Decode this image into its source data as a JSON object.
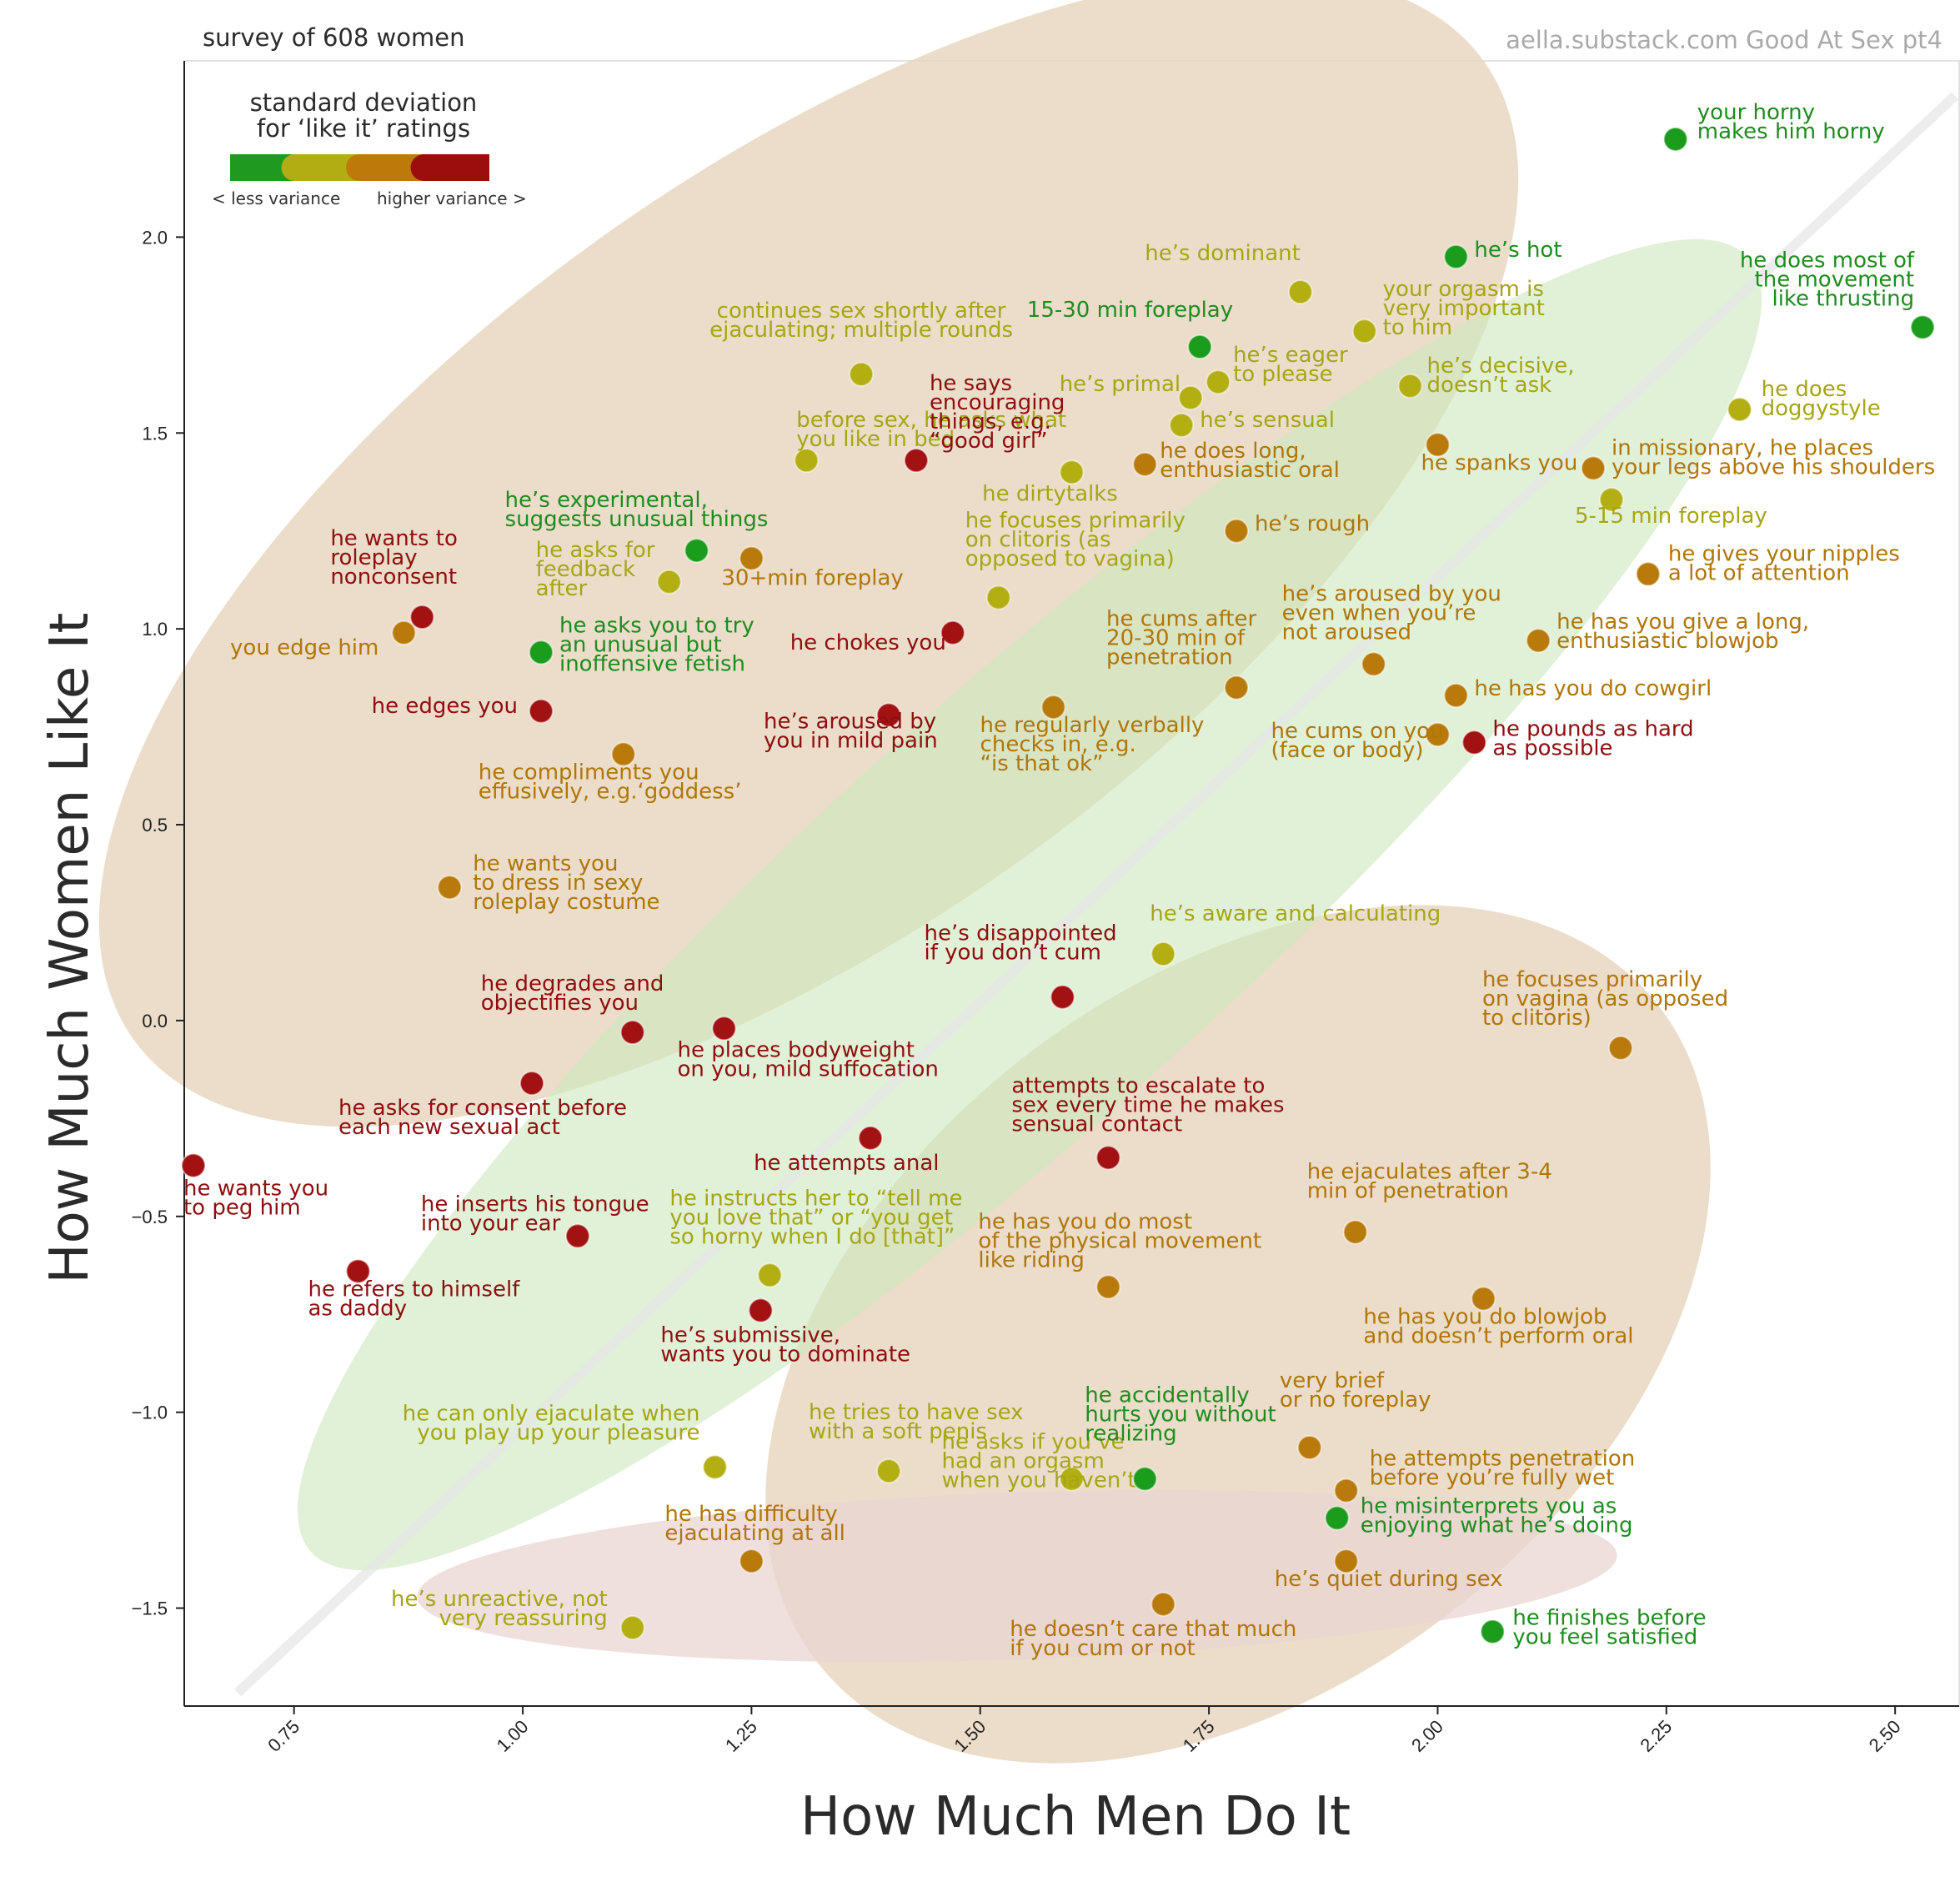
{
  "header": {
    "left": "survey of 608 women",
    "right": "aella.substack.com Good At Sex pt4"
  },
  "legend": {
    "title_line1": "standard deviation",
    "title_line2": "for ‘like it’ ratings",
    "low_label": "< less variance",
    "high_label": "higher variance >",
    "colors": [
      "#1f9a1f",
      "#b1ad12",
      "#bd7a0a",
      "#9c0e0e"
    ]
  },
  "colors": {
    "green": "#1f8c1f",
    "olive": "#a6a614",
    "amber": "#b07608",
    "red": "#8e0f0f",
    "dot_green": "#1c9c1c",
    "dot_olive": "#b3ae12",
    "dot_amber": "#b97a0c",
    "dot_red": "#a31212",
    "ellipse_green": "#d7ecc9",
    "ellipse_tan": "#e6d5be",
    "ellipse_pink": "#ead4d2"
  },
  "chart_data": {
    "type": "scatter",
    "title": "",
    "xlabel": "How Much Men Do It",
    "ylabel": "How Much Women Like It",
    "xlim": [
      0.63,
      2.57
    ],
    "ylim": [
      -1.75,
      2.45
    ],
    "xticks": [
      {
        "v": 0.75,
        "t": "0.75"
      },
      {
        "v": 1.0,
        "t": "1.00"
      },
      {
        "v": 1.25,
        "t": "1.25"
      },
      {
        "v": 1.5,
        "t": "1.50"
      },
      {
        "v": 1.75,
        "t": "1.75"
      },
      {
        "v": 2.0,
        "t": "2.00"
      },
      {
        "v": 2.25,
        "t": "2.25"
      },
      {
        "v": 2.5,
        "t": "2.50"
      }
    ],
    "yticks": [
      {
        "v": -1.5,
        "t": "−1.5"
      },
      {
        "v": -1.0,
        "t": "−1.0"
      },
      {
        "v": -0.5,
        "t": "−0.5"
      },
      {
        "v": 0.0,
        "t": "0.0"
      },
      {
        "v": 0.5,
        "t": "0.5"
      },
      {
        "v": 1.0,
        "t": "1.0"
      },
      {
        "v": 1.5,
        "t": "1.5"
      },
      {
        "v": 2.0,
        "t": "2.0"
      }
    ],
    "points": [
      {
        "x": 2.26,
        "y": 2.25,
        "c": "green",
        "lines": [
          "your horny",
          "makes him horny"
        ]
      },
      {
        "x": 2.02,
        "y": 1.95,
        "c": "green",
        "lines": [
          "he’s hot"
        ]
      },
      {
        "x": 2.53,
        "y": 1.77,
        "c": "green",
        "lines": [
          "he does most of",
          "the movement",
          "like thrusting"
        ]
      },
      {
        "x": 1.85,
        "y": 1.86,
        "c": "olive",
        "lines": [
          "he’s dominant"
        ]
      },
      {
        "x": 1.92,
        "y": 1.76,
        "c": "olive",
        "lines": [
          "your orgasm is",
          "very important",
          "to him"
        ]
      },
      {
        "x": 1.74,
        "y": 1.72,
        "c": "green",
        "lines": [
          "15-30 min foreplay"
        ]
      },
      {
        "x": 1.76,
        "y": 1.63,
        "c": "olive",
        "lines": [
          "he’s eager",
          "to please"
        ]
      },
      {
        "x": 1.73,
        "y": 1.59,
        "c": "olive",
        "lines": [
          "he’s primal"
        ]
      },
      {
        "x": 1.72,
        "y": 1.52,
        "c": "olive",
        "lines": [
          "he’s sensual"
        ]
      },
      {
        "x": 1.97,
        "y": 1.62,
        "c": "olive",
        "lines": [
          "he’s decisive,",
          "doesn’t ask"
        ]
      },
      {
        "x": 1.37,
        "y": 1.65,
        "c": "olive",
        "lines": [
          "continues sex shortly after",
          "ejaculating; multiple rounds"
        ]
      },
      {
        "x": 2.33,
        "y": 1.56,
        "c": "olive",
        "lines": [
          "he does",
          "doggystyle"
        ]
      },
      {
        "x": 1.31,
        "y": 1.43,
        "c": "olive",
        "lines": [
          "before sex, he asks what",
          "you like in bed"
        ]
      },
      {
        "x": 1.43,
        "y": 1.43,
        "c": "red",
        "lines": [
          "he says",
          "encouraging",
          "things, e.g.",
          "“good girl”"
        ]
      },
      {
        "x": 1.68,
        "y": 1.42,
        "c": "amber",
        "lines": [
          "he does long,",
          "enthusiastic oral"
        ]
      },
      {
        "x": 1.6,
        "y": 1.4,
        "c": "olive",
        "lines": [
          "he dirtytalks"
        ]
      },
      {
        "x": 2.0,
        "y": 1.47,
        "c": "amber",
        "lines": [
          "he spanks you"
        ]
      },
      {
        "x": 2.17,
        "y": 1.41,
        "c": "amber",
        "lines": [
          "in missionary, he places",
          "your legs above his shoulders"
        ]
      },
      {
        "x": 2.19,
        "y": 1.33,
        "c": "olive",
        "lines": [
          "5-15 min foreplay"
        ]
      },
      {
        "x": 1.78,
        "y": 1.25,
        "c": "amber",
        "lines": [
          "he’s rough"
        ]
      },
      {
        "x": 1.19,
        "y": 1.2,
        "c": "green",
        "lines": [
          "he’s experimental,",
          "suggests unusual things"
        ]
      },
      {
        "x": 1.25,
        "y": 1.18,
        "c": "amber",
        "lines": [
          "30+min foreplay"
        ]
      },
      {
        "x": 1.16,
        "y": 1.12,
        "c": "olive",
        "lines": [
          "he asks for",
          "feedback",
          "after"
        ]
      },
      {
        "x": 1.52,
        "y": 1.08,
        "c": "olive",
        "lines": [
          "he focuses primarily",
          "on clitoris (as",
          " opposed to vagina)"
        ]
      },
      {
        "x": 2.23,
        "y": 1.14,
        "c": "amber",
        "lines": [
          "he gives your nipples",
          "a lot of attention"
        ]
      },
      {
        "x": 0.89,
        "y": 1.03,
        "c": "red",
        "lines": [
          "he wants to",
          "roleplay",
          "nonconsent"
        ]
      },
      {
        "x": 0.87,
        "y": 0.99,
        "c": "amber",
        "lines": [
          "you edge him"
        ]
      },
      {
        "x": 1.02,
        "y": 0.94,
        "c": "green",
        "lines": [
          "he asks you to try",
          "an unusual but",
          "inoffensive fetish"
        ]
      },
      {
        "x": 1.47,
        "y": 0.99,
        "c": "red",
        "lines": [
          "he chokes you"
        ]
      },
      {
        "x": 2.11,
        "y": 0.97,
        "c": "amber",
        "lines": [
          "he has you give a long,",
          "enthusiastic blowjob"
        ]
      },
      {
        "x": 1.93,
        "y": 0.91,
        "c": "amber",
        "lines": [
          "he’s aroused by you",
          "even when you’re",
          "not aroused"
        ]
      },
      {
        "x": 1.78,
        "y": 0.85,
        "c": "amber",
        "lines": [
          "he cums after",
          "20-30 min of",
          "penetration"
        ]
      },
      {
        "x": 2.02,
        "y": 0.83,
        "c": "amber",
        "lines": [
          "he has you do cowgirl"
        ]
      },
      {
        "x": 1.02,
        "y": 0.79,
        "c": "red",
        "lines": [
          "he edges you"
        ]
      },
      {
        "x": 1.4,
        "y": 0.78,
        "c": "red",
        "lines": [
          "he’s aroused by",
          "you in mild pain"
        ]
      },
      {
        "x": 1.58,
        "y": 0.8,
        "c": "amber",
        "lines": [
          "he regularly verbally",
          "checks in, e.g.",
          "“is that ok”"
        ]
      },
      {
        "x": 2.0,
        "y": 0.73,
        "c": "amber",
        "lines": [
          "he cums on you",
          "(face or body)"
        ]
      },
      {
        "x": 2.04,
        "y": 0.71,
        "c": "red",
        "lines": [
          "he pounds as hard",
          "as possible"
        ]
      },
      {
        "x": 1.11,
        "y": 0.68,
        "c": "amber",
        "lines": [
          "he compliments you",
          "effusively, e.g.‘goddess’"
        ]
      },
      {
        "x": 0.92,
        "y": 0.34,
        "c": "amber",
        "lines": [
          "he wants you",
          "to dress in sexy",
          "roleplay costume"
        ]
      },
      {
        "x": 1.7,
        "y": 0.17,
        "c": "olive",
        "lines": [
          "he’s aware and calculating"
        ]
      },
      {
        "x": 1.59,
        "y": 0.06,
        "c": "red",
        "lines": [
          "he’s disappointed",
          "if you don’t cum"
        ]
      },
      {
        "x": 1.12,
        "y": -0.03,
        "c": "red",
        "lines": [
          "he degrades and",
          "objectifies you"
        ]
      },
      {
        "x": 1.22,
        "y": -0.02,
        "c": "red",
        "lines": [
          "he places bodyweight",
          "on you, mild suffocation"
        ]
      },
      {
        "x": 2.2,
        "y": -0.07,
        "c": "amber",
        "lines": [
          "he focuses primarily",
          "on vagina (as opposed",
          "to clitoris)"
        ]
      },
      {
        "x": 1.01,
        "y": -0.16,
        "c": "red",
        "lines": [
          "he asks for consent before",
          "each new sexual act"
        ]
      },
      {
        "x": 1.38,
        "y": -0.3,
        "c": "red",
        "lines": [
          "he attempts anal"
        ]
      },
      {
        "x": 1.64,
        "y": -0.35,
        "c": "red",
        "lines": [
          "attempts to escalate to",
          "sex every time he makes",
          "sensual contact"
        ]
      },
      {
        "x": 0.64,
        "y": -0.37,
        "c": "red",
        "lines": [
          "he wants you",
          "to peg him"
        ]
      },
      {
        "x": 1.06,
        "y": -0.55,
        "c": "red",
        "lines": [
          "he inserts his tongue",
          "into your ear"
        ]
      },
      {
        "x": 1.91,
        "y": -0.54,
        "c": "amber",
        "lines": [
          "he ejaculates after 3-4",
          "min of penetration"
        ]
      },
      {
        "x": 0.82,
        "y": -0.64,
        "c": "red",
        "lines": [
          "he refers to himself",
          "as daddy"
        ]
      },
      {
        "x": 1.27,
        "y": -0.65,
        "c": "olive",
        "lines": [
          "he instructs her to “tell me",
          "you love that” or “you get",
          "so horny when I do [that]”"
        ]
      },
      {
        "x": 1.26,
        "y": -0.74,
        "c": "red",
        "lines": [
          "he’s submissive,",
          "wants you to dominate"
        ]
      },
      {
        "x": 1.64,
        "y": -0.68,
        "c": "amber",
        "lines": [
          "he has you do most",
          "of the physical movement",
          "like riding"
        ]
      },
      {
        "x": 2.05,
        "y": -0.71,
        "c": "amber",
        "lines": [
          "he has you do blowjob",
          "and doesn’t perform oral"
        ]
      },
      {
        "x": 1.21,
        "y": -1.14,
        "c": "olive",
        "lines": [
          "he can only ejaculate when",
          "you play up your pleasure"
        ]
      },
      {
        "x": 1.4,
        "y": -1.15,
        "c": "olive",
        "lines": [
          "he tries to have sex",
          "with a soft penis"
        ]
      },
      {
        "x": 1.6,
        "y": -1.17,
        "c": "olive",
        "lines": [
          "he asks if you’ve",
          "had an orgasm",
          "when you haven’t"
        ]
      },
      {
        "x": 1.68,
        "y": -1.17,
        "c": "green",
        "lines": [
          "he accidentally",
          "hurts you without",
          "realizing"
        ]
      },
      {
        "x": 1.86,
        "y": -1.09,
        "c": "amber",
        "lines": [
          "very brief",
          "or no foreplay"
        ]
      },
      {
        "x": 1.9,
        "y": -1.2,
        "c": "amber",
        "lines": [
          "he attempts penetration",
          "before you’re fully wet"
        ]
      },
      {
        "x": 1.89,
        "y": -1.27,
        "c": "green",
        "lines": [
          "he misinterprets you as",
          "enjoying what he’s doing"
        ]
      },
      {
        "x": 1.25,
        "y": -1.38,
        "c": "amber",
        "lines": [
          "he has difficulty",
          "ejaculating at all"
        ]
      },
      {
        "x": 1.9,
        "y": -1.38,
        "c": "amber",
        "lines": [
          "he’s quiet during sex"
        ]
      },
      {
        "x": 1.12,
        "y": -1.55,
        "c": "olive",
        "lines": [
          "he’s unreactive, not",
          "very reassuring"
        ]
      },
      {
        "x": 1.7,
        "y": -1.49,
        "c": "amber",
        "lines": [
          "he doesn’t care that much",
          "if you cum or not"
        ]
      },
      {
        "x": 2.06,
        "y": -1.56,
        "c": "green",
        "lines": [
          "he finishes before",
          "you feel satisfied"
        ]
      }
    ]
  }
}
